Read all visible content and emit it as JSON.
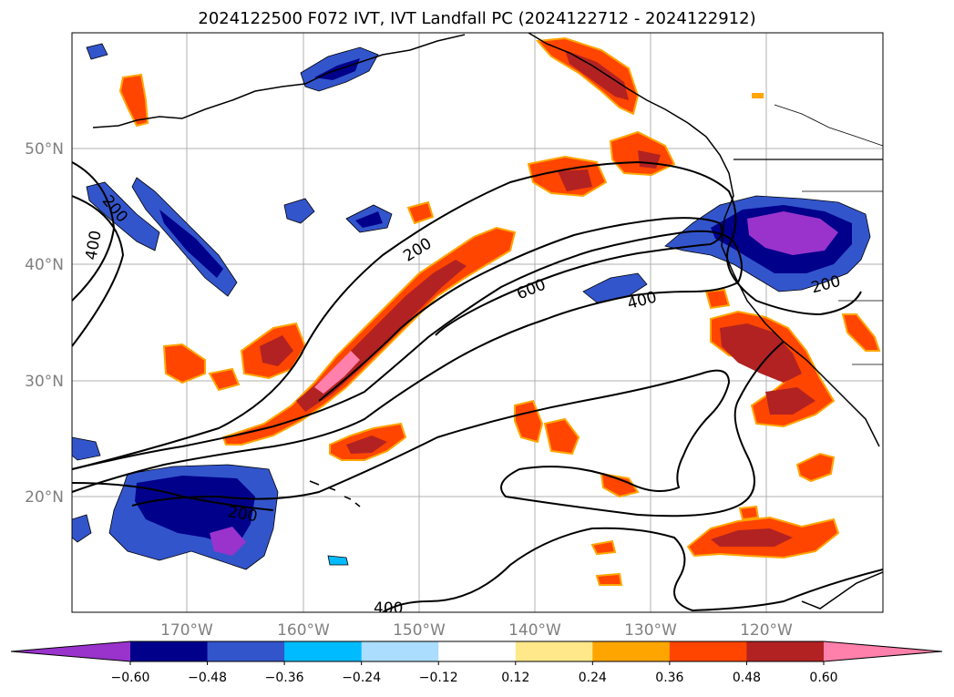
{
  "title": "2024122500 F072 IVT, IVT Landfall PC (2024122712 - 2024122912)",
  "map": {
    "lat_labels": [
      "50°N",
      "40°N",
      "30°N",
      "20°N"
    ],
    "lon_labels": [
      "170°W",
      "160°W",
      "150°W",
      "140°W",
      "130°W",
      "120°W"
    ],
    "contour_labels": [
      "200",
      "400",
      "200",
      "600",
      "400",
      "200",
      "200",
      "400"
    ]
  },
  "colorbar": {
    "colors": [
      "#9933cc",
      "#00008b",
      "#3355cc",
      "#00bbff",
      "#aaddff",
      "#ffffff",
      "#ffe88a",
      "#ffa500",
      "#ff4500",
      "#b22222",
      "#ff80aa"
    ],
    "tick_labels": [
      "−0.60",
      "−0.48",
      "−0.36",
      "−0.24",
      "−0.12",
      "0.12",
      "0.24",
      "0.36",
      "0.48",
      "0.60"
    ]
  }
}
